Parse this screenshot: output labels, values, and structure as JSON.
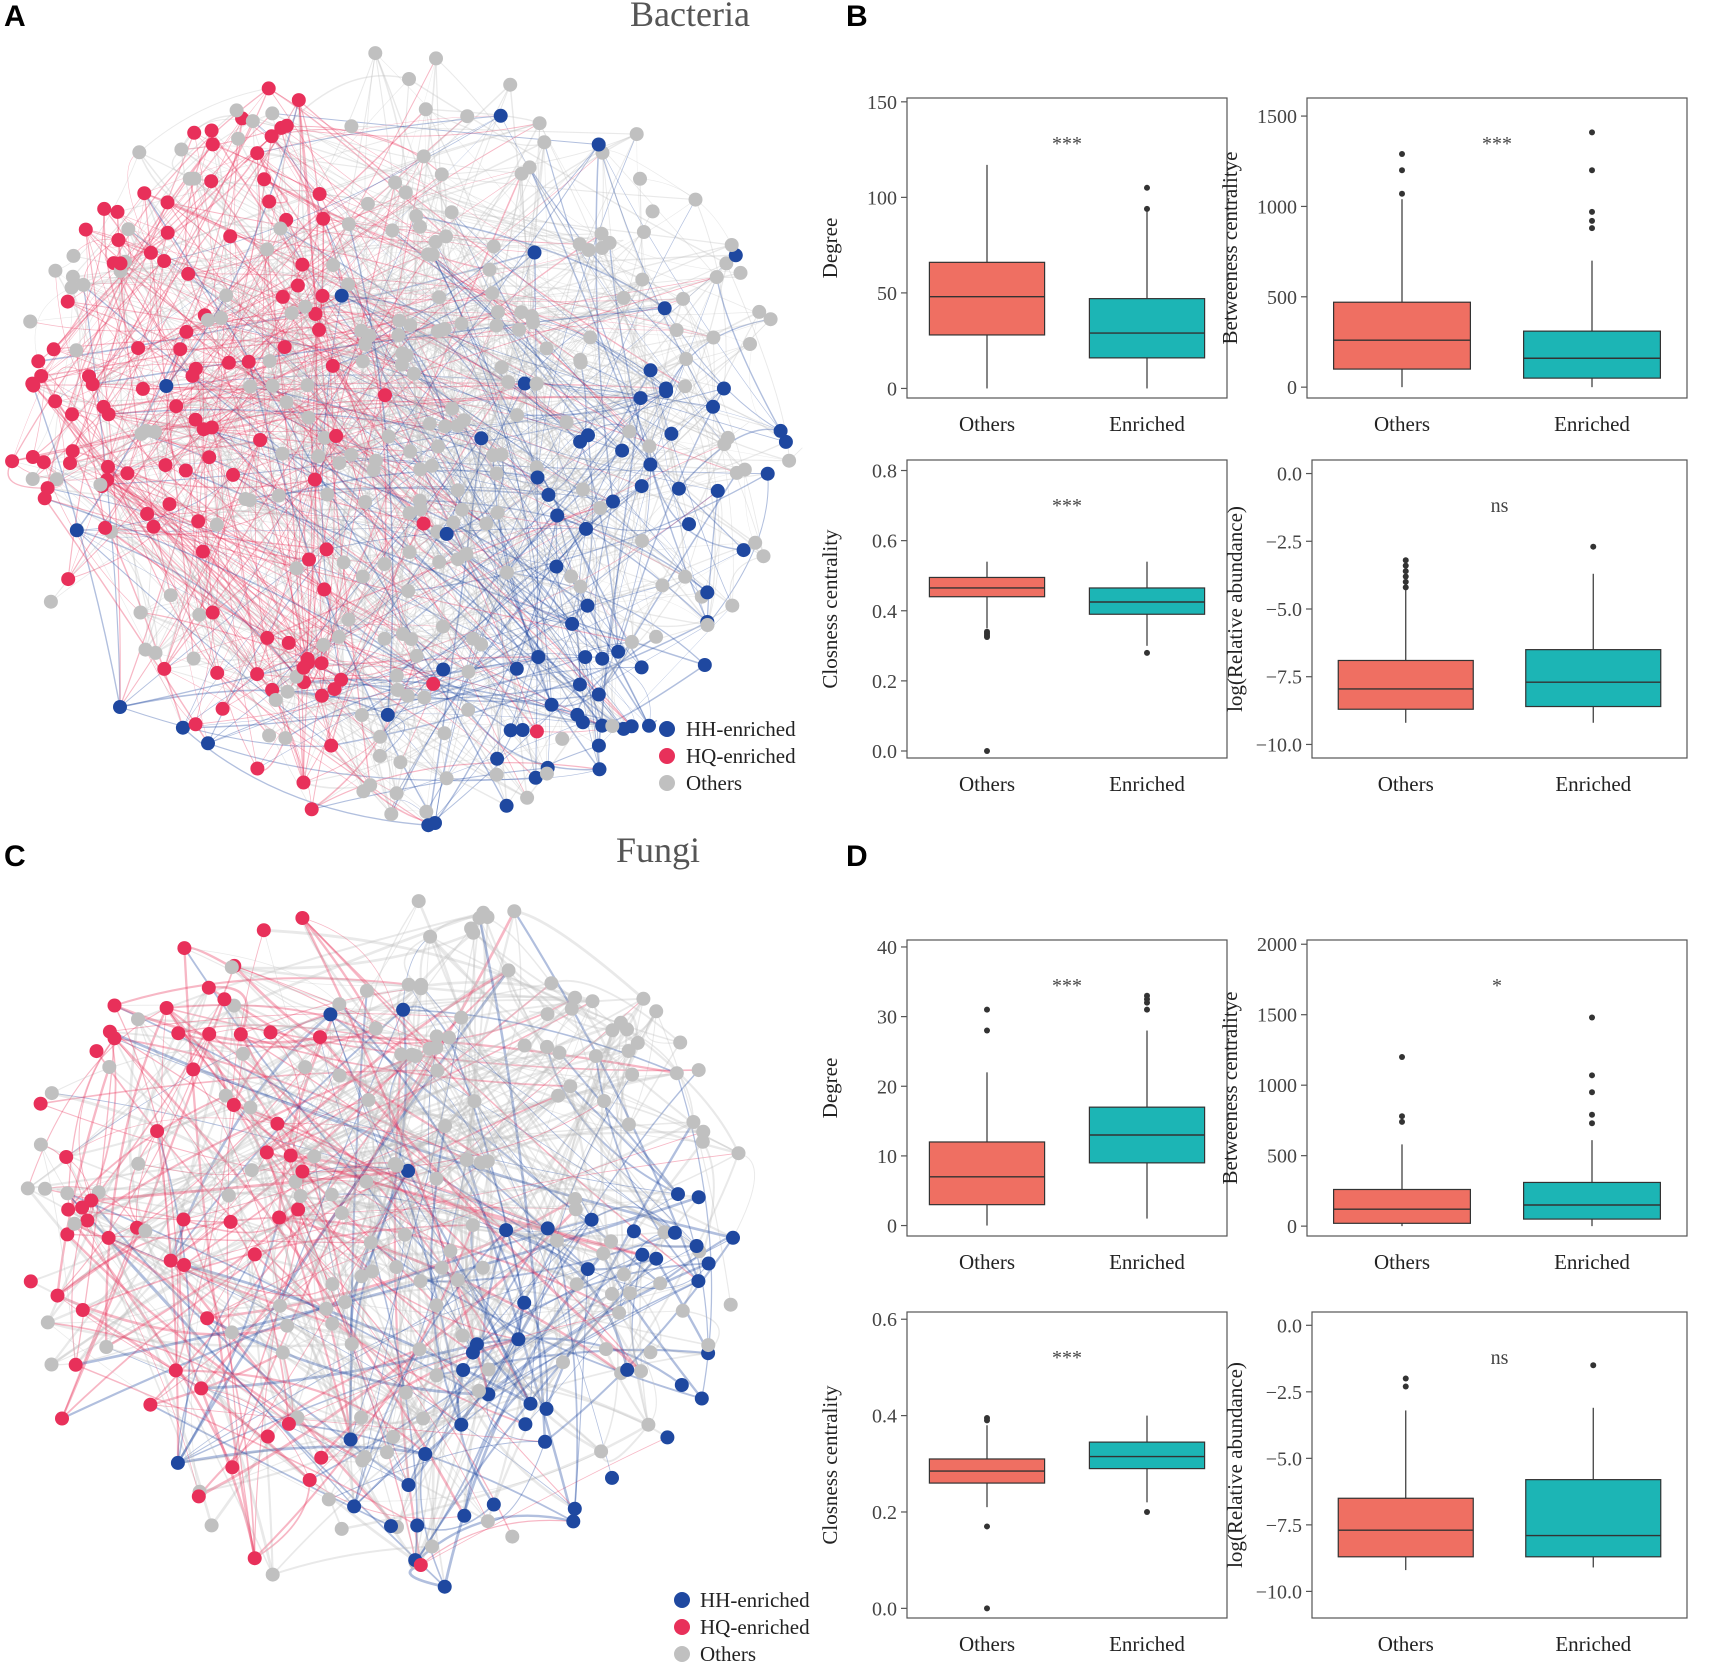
{
  "panels": {
    "A": {
      "letter": "A",
      "title": "Bacteria"
    },
    "B": {
      "letter": "B"
    },
    "C": {
      "letter": "C",
      "title": "Fungi"
    },
    "D": {
      "letter": "D"
    }
  },
  "legend": {
    "items": [
      {
        "label": "HH-enriched",
        "color": "#1f48a0"
      },
      {
        "label": "HQ-enriched",
        "color": "#e8305a"
      },
      {
        "label": "Others",
        "color": "#c0c0c0"
      }
    ]
  },
  "colors": {
    "others_box": "#ef6f62",
    "enriched_box": "#1cb5b5",
    "hh": "#1f48a0",
    "hq": "#e8305a",
    "others_node": "#c0c0c0"
  },
  "chart_data": [
    {
      "id": "B1",
      "type": "boxplot",
      "panel": "B",
      "ylabel": "Degree",
      "categories": [
        "Others",
        "Enriched"
      ],
      "ylim": [
        -5,
        152
      ],
      "yticks": [
        0,
        50,
        100,
        150
      ],
      "tick_labels": [
        "0",
        "50",
        "100",
        "150"
      ],
      "significance": "***",
      "boxes": [
        {
          "q1": 28,
          "median": 48,
          "q3": 66,
          "low": 0,
          "high": 117,
          "outliers": []
        },
        {
          "q1": 16,
          "median": 29,
          "q3": 47,
          "low": 0,
          "high": 93,
          "outliers": [
            105,
            94
          ]
        }
      ]
    },
    {
      "id": "B2",
      "type": "boxplot",
      "panel": "B",
      "ylabel": "Betweeness centralitye",
      "categories": [
        "Others",
        "Enriched"
      ],
      "ylim": [
        -60,
        1600
      ],
      "yticks": [
        0,
        500,
        1000,
        1500
      ],
      "tick_labels": [
        "0",
        "500",
        "1000",
        "1500"
      ],
      "significance": "***",
      "boxes": [
        {
          "q1": 100,
          "median": 260,
          "q3": 470,
          "low": 0,
          "high": 1040,
          "outliers": [
            1290,
            1200,
            1070
          ]
        },
        {
          "q1": 50,
          "median": 160,
          "q3": 310,
          "low": 0,
          "high": 700,
          "outliers": [
            1410,
            1200,
            970,
            920,
            880
          ]
        }
      ]
    },
    {
      "id": "B3",
      "type": "boxplot",
      "panel": "B",
      "ylabel": "Closness centrality",
      "categories": [
        "Others",
        "Enriched"
      ],
      "ylim": [
        -0.02,
        0.83
      ],
      "yticks": [
        0.0,
        0.2,
        0.4,
        0.6,
        0.8
      ],
      "tick_labels": [
        "0.0",
        "0.2",
        "0.4",
        "0.6",
        "0.8"
      ],
      "significance": "***",
      "boxes": [
        {
          "q1": 0.44,
          "median": 0.465,
          "q3": 0.495,
          "low": 0.35,
          "high": 0.54,
          "outliers": [
            0.34,
            0.335,
            0.33,
            0.325,
            0.0
          ]
        },
        {
          "q1": 0.39,
          "median": 0.425,
          "q3": 0.465,
          "low": 0.3,
          "high": 0.54,
          "outliers": [
            0.28
          ]
        }
      ]
    },
    {
      "id": "B4",
      "type": "boxplot",
      "panel": "B",
      "ylabel": "log(Relative abundance)",
      "categories": [
        "Others",
        "Enriched"
      ],
      "ylim": [
        -10.5,
        0.5
      ],
      "yticks": [
        0.0,
        -2.5,
        -5.0,
        -7.5,
        -10.0
      ],
      "tick_labels": [
        "0.0",
        "−2.5",
        "−5.0",
        "−7.5",
        "−10.0"
      ],
      "significance": "ns",
      "boxes": [
        {
          "q1": -8.7,
          "median": -7.95,
          "q3": -6.9,
          "low": -9.2,
          "high": -4.3,
          "outliers": [
            -3.2,
            -3.4,
            -3.6,
            -3.8,
            -4.0,
            -4.2
          ]
        },
        {
          "q1": -8.6,
          "median": -7.7,
          "q3": -6.5,
          "low": -9.2,
          "high": -3.7,
          "outliers": [
            -2.7
          ]
        }
      ]
    },
    {
      "id": "D1",
      "type": "boxplot",
      "panel": "D",
      "ylabel": "Degree",
      "categories": [
        "Others",
        "Enriched"
      ],
      "ylim": [
        -1.5,
        41
      ],
      "yticks": [
        0,
        10,
        20,
        30,
        40
      ],
      "tick_labels": [
        "0",
        "10",
        "20",
        "30",
        "40"
      ],
      "significance": "***",
      "boxes": [
        {
          "q1": 3,
          "median": 7,
          "q3": 12,
          "low": 0,
          "high": 22,
          "outliers": [
            31,
            28
          ]
        },
        {
          "q1": 9,
          "median": 13,
          "q3": 17,
          "low": 1,
          "high": 28,
          "outliers": [
            33,
            32.5,
            32,
            31
          ]
        }
      ]
    },
    {
      "id": "D2",
      "type": "boxplot",
      "panel": "D",
      "ylabel": "Betweeness centralitye",
      "categories": [
        "Others",
        "Enriched"
      ],
      "ylim": [
        -70,
        2030
      ],
      "yticks": [
        0,
        500,
        1000,
        1500,
        2000
      ],
      "tick_labels": [
        "0",
        "500",
        "1000",
        "1500",
        "2000"
      ],
      "significance": "*",
      "boxes": [
        {
          "q1": 20,
          "median": 120,
          "q3": 260,
          "low": 0,
          "high": 580,
          "outliers": [
            1200,
            780,
            740
          ]
        },
        {
          "q1": 50,
          "median": 150,
          "q3": 310,
          "low": 0,
          "high": 610,
          "outliers": [
            1480,
            1070,
            950,
            790,
            730
          ]
        }
      ]
    },
    {
      "id": "D3",
      "type": "boxplot",
      "panel": "D",
      "ylabel": "Closness centrality",
      "categories": [
        "Others",
        "Enriched"
      ],
      "ylim": [
        -0.02,
        0.615
      ],
      "yticks": [
        0.0,
        0.2,
        0.4,
        0.6
      ],
      "tick_labels": [
        "0.0",
        "0.2",
        "0.4",
        "0.6"
      ],
      "significance": "***",
      "boxes": [
        {
          "q1": 0.26,
          "median": 0.285,
          "q3": 0.31,
          "low": 0.21,
          "high": 0.38,
          "outliers": [
            0.395,
            0.39,
            0.17,
            0.0
          ]
        },
        {
          "q1": 0.29,
          "median": 0.315,
          "q3": 0.345,
          "low": 0.22,
          "high": 0.4,
          "outliers": [
            0.2
          ]
        }
      ]
    },
    {
      "id": "D4",
      "type": "boxplot",
      "panel": "D",
      "ylabel": "log(Relative abundance)",
      "categories": [
        "Others",
        "Enriched"
      ],
      "ylim": [
        -11,
        0.5
      ],
      "yticks": [
        0.0,
        -2.5,
        -5.0,
        -7.5,
        -10.0
      ],
      "tick_labels": [
        "0.0",
        "−2.5",
        "−5.0",
        "−7.5",
        "−10.0"
      ],
      "significance": "ns",
      "boxes": [
        {
          "q1": -8.7,
          "median": -7.7,
          "q3": -6.5,
          "low": -9.2,
          "high": -3.2,
          "outliers": [
            -2.0,
            -2.3
          ]
        },
        {
          "q1": -8.7,
          "median": -7.9,
          "q3": -5.8,
          "low": -9.1,
          "high": -3.1,
          "outliers": [
            -1.5
          ]
        }
      ]
    }
  ]
}
